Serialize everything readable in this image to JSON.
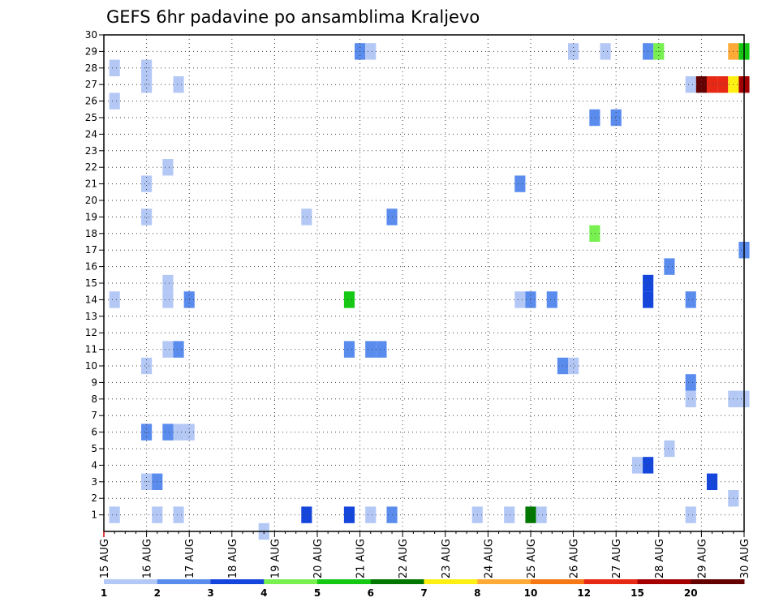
{
  "chart_data": {
    "type": "heatmap",
    "title": "GEFS 6hr padavine po ansamblima Kraljevo",
    "x_ticks": [
      "15 AUG",
      "16 AUG",
      "17 AUG",
      "18 AUG",
      "19 AUG",
      "20 AUG",
      "21 AUG",
      "22 AUG",
      "23 AUG",
      "24 AUG",
      "25 AUG",
      "26 AUG",
      "27 AUG",
      "28 AUG",
      "29 AUG",
      "30 AUG"
    ],
    "y_ticks": [
      "1",
      "2",
      "3",
      "4",
      "5",
      "6",
      "7",
      "8",
      "9",
      "10",
      "11",
      "12",
      "13",
      "14",
      "15",
      "16",
      "17",
      "18",
      "19",
      "20",
      "21",
      "22",
      "23",
      "24",
      "25",
      "26",
      "27",
      "28",
      "29",
      "30"
    ],
    "y_range": [
      0,
      30
    ],
    "x_range": [
      0,
      60
    ],
    "grid": true,
    "colorbar": {
      "placement": "bottom",
      "labels": [
        "1",
        "2",
        "3",
        "4",
        "5",
        "6",
        "7",
        "8",
        "10",
        "12",
        "15",
        "20"
      ],
      "colors": [
        "#b4c8f5",
        "#5a8cee",
        "#1446dc",
        "#78f050",
        "#14c814",
        "#007800",
        "#fff014",
        "#ffaa37",
        "#f57814",
        "#e62814",
        "#a50000",
        "#640000"
      ]
    },
    "cells": [
      {
        "x": 1,
        "y": 1,
        "level": 0
      },
      {
        "x": 1,
        "y": 14,
        "level": 0
      },
      {
        "x": 1,
        "y": 26,
        "level": 0
      },
      {
        "x": 1,
        "y": 28,
        "level": 0
      },
      {
        "x": 4,
        "y": 6,
        "level": 1
      },
      {
        "x": 4,
        "y": 10,
        "level": 0
      },
      {
        "x": 4,
        "y": 19,
        "level": 0
      },
      {
        "x": 4,
        "y": 21,
        "level": 0
      },
      {
        "x": 4,
        "y": 27,
        "level": 0
      },
      {
        "x": 4,
        "y": 28,
        "level": 0
      },
      {
        "x": 4,
        "y": 3,
        "level": 0
      },
      {
        "x": 5,
        "y": 3,
        "level": 1
      },
      {
        "x": 5,
        "y": 1,
        "level": 0
      },
      {
        "x": 6,
        "y": 6,
        "level": 1
      },
      {
        "x": 7,
        "y": 6,
        "level": 0
      },
      {
        "x": 8,
        "y": 6,
        "level": 0
      },
      {
        "x": 6,
        "y": 11,
        "level": 0
      },
      {
        "x": 7,
        "y": 11,
        "level": 1
      },
      {
        "x": 6,
        "y": 14,
        "level": 0
      },
      {
        "x": 6,
        "y": 15,
        "level": 0
      },
      {
        "x": 6,
        "y": 22,
        "level": 0
      },
      {
        "x": 7,
        "y": 1,
        "level": 0
      },
      {
        "x": 7,
        "y": 27,
        "level": 0
      },
      {
        "x": 8,
        "y": 14,
        "level": 1
      },
      {
        "x": 15,
        "y": 0,
        "level": 0
      },
      {
        "x": 19,
        "y": 1,
        "level": 2
      },
      {
        "x": 19,
        "y": 19,
        "level": 0
      },
      {
        "x": 23,
        "y": 1,
        "level": 2
      },
      {
        "x": 23,
        "y": 11,
        "level": 1
      },
      {
        "x": 23,
        "y": 14,
        "level": 4
      },
      {
        "x": 24,
        "y": 29,
        "level": 1
      },
      {
        "x": 25,
        "y": 29,
        "level": 0
      },
      {
        "x": 25,
        "y": 1,
        "level": 0
      },
      {
        "x": 25,
        "y": 11,
        "level": 1
      },
      {
        "x": 26,
        "y": 11,
        "level": 1
      },
      {
        "x": 27,
        "y": 1,
        "level": 1
      },
      {
        "x": 27,
        "y": 19,
        "level": 1
      },
      {
        "x": 35,
        "y": 1,
        "level": 0
      },
      {
        "x": 38,
        "y": 1,
        "level": 0
      },
      {
        "x": 39,
        "y": 14,
        "level": 0
      },
      {
        "x": 40,
        "y": 14,
        "level": 1
      },
      {
        "x": 39,
        "y": 21,
        "level": 1
      },
      {
        "x": 40,
        "y": 1,
        "level": 5
      },
      {
        "x": 41,
        "y": 1,
        "level": 0
      },
      {
        "x": 42,
        "y": 14,
        "level": 1
      },
      {
        "x": 43,
        "y": 10,
        "level": 1
      },
      {
        "x": 44,
        "y": 10,
        "level": 0
      },
      {
        "x": 44,
        "y": 29,
        "level": 0
      },
      {
        "x": 46,
        "y": 18,
        "level": 3
      },
      {
        "x": 46,
        "y": 25,
        "level": 1
      },
      {
        "x": 47,
        "y": 29,
        "level": 0
      },
      {
        "x": 48,
        "y": 25,
        "level": 1
      },
      {
        "x": 50,
        "y": 4,
        "level": 0
      },
      {
        "x": 51,
        "y": 4,
        "level": 2
      },
      {
        "x": 51,
        "y": 14,
        "level": 2
      },
      {
        "x": 51,
        "y": 15,
        "level": 2
      },
      {
        "x": 51,
        "y": 29,
        "level": 1
      },
      {
        "x": 52,
        "y": 29,
        "level": 3
      },
      {
        "x": 53,
        "y": 5,
        "level": 0
      },
      {
        "x": 53,
        "y": 16,
        "level": 1
      },
      {
        "x": 55,
        "y": 1,
        "level": 0
      },
      {
        "x": 55,
        "y": 8,
        "level": 0
      },
      {
        "x": 55,
        "y": 9,
        "level": 1
      },
      {
        "x": 55,
        "y": 14,
        "level": 1
      },
      {
        "x": 55,
        "y": 27,
        "level": 0
      },
      {
        "x": 56,
        "y": 27,
        "level": 11
      },
      {
        "x": 57,
        "y": 27,
        "level": 9
      },
      {
        "x": 58,
        "y": 27,
        "level": 9
      },
      {
        "x": 57,
        "y": 3,
        "level": 2
      },
      {
        "x": 59,
        "y": 2,
        "level": 0
      },
      {
        "x": 59,
        "y": 8,
        "level": 0
      },
      {
        "x": 60,
        "y": 8,
        "level": 0
      },
      {
        "x": 59,
        "y": 27,
        "level": 6
      },
      {
        "x": 60,
        "y": 27,
        "level": 10
      },
      {
        "x": 59,
        "y": 29,
        "level": 7
      },
      {
        "x": 60,
        "y": 29,
        "level": 4
      },
      {
        "x": 60,
        "y": 17,
        "level": 1
      }
    ]
  }
}
